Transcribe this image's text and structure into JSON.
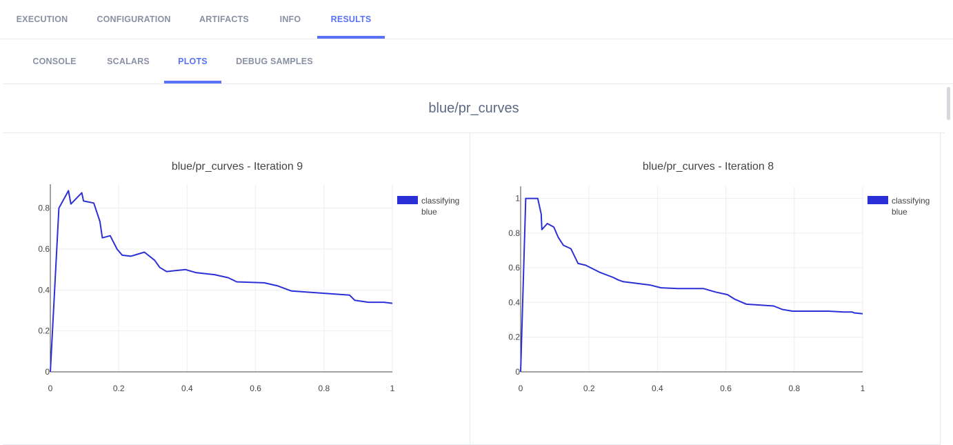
{
  "top_tabs": [
    {
      "label": "EXECUTION",
      "active": false
    },
    {
      "label": "CONFIGURATION",
      "active": false
    },
    {
      "label": "ARTIFACTS",
      "active": false
    },
    {
      "label": "INFO",
      "active": false
    },
    {
      "label": "RESULTS",
      "active": true
    }
  ],
  "sub_tabs": [
    {
      "label": "CONSOLE",
      "active": false
    },
    {
      "label": "SCALARS",
      "active": false
    },
    {
      "label": "PLOTS",
      "active": true
    },
    {
      "label": "DEBUG SAMPLES",
      "active": false
    }
  ],
  "section_title": "blue/pr_curves",
  "colors": {
    "accent": "#5a72f5",
    "series": "#2a2fd6"
  },
  "chart_data": [
    {
      "type": "line",
      "title": "blue/pr_curves - Iteration 9",
      "xlabel": "",
      "ylabel": "",
      "xlim": [
        0,
        1
      ],
      "ylim": [
        0,
        0.9
      ],
      "xticks": [
        0,
        0.2,
        0.4,
        0.6,
        0.8,
        1
      ],
      "xtick_labels": [
        "0",
        "0.2",
        "0.4",
        "0.6",
        "0.8",
        "1"
      ],
      "yticks": [
        0,
        0.2,
        0.4,
        0.6,
        0.8
      ],
      "ytick_labels": [
        "0",
        "0.2",
        "0.4",
        "0.6",
        "0.8"
      ],
      "grid": true,
      "legend_position": "top-right",
      "series": [
        {
          "name": "classifying blue",
          "color": "#2a2fd6",
          "x": [
            0,
            0.025,
            0.053,
            0.06,
            0.092,
            0.097,
            0.127,
            0.145,
            0.152,
            0.175,
            0.195,
            0.21,
            0.235,
            0.275,
            0.305,
            0.32,
            0.34,
            0.395,
            0.425,
            0.48,
            0.52,
            0.545,
            0.625,
            0.665,
            0.705,
            0.875,
            0.89,
            0.93,
            0.945,
            0.975,
            1.0
          ],
          "y": [
            0,
            0.8,
            0.885,
            0.82,
            0.875,
            0.835,
            0.825,
            0.735,
            0.655,
            0.665,
            0.6,
            0.57,
            0.565,
            0.585,
            0.545,
            0.51,
            0.49,
            0.5,
            0.485,
            0.475,
            0.46,
            0.44,
            0.435,
            0.42,
            0.395,
            0.375,
            0.35,
            0.34,
            0.34,
            0.34,
            0.335
          ]
        }
      ]
    },
    {
      "type": "line",
      "title": "blue/pr_curves - Iteration 8",
      "xlabel": "",
      "ylabel": "",
      "xlim": [
        0,
        1
      ],
      "ylim": [
        0,
        1.05
      ],
      "xticks": [
        0,
        0.2,
        0.4,
        0.6,
        0.8,
        1
      ],
      "xtick_labels": [
        "0",
        "0.2",
        "0.4",
        "0.6",
        "0.8",
        "1"
      ],
      "yticks": [
        0,
        0.2,
        0.4,
        0.6,
        0.8,
        1
      ],
      "ytick_labels": [
        "0",
        "0.2",
        "0.4",
        "0.6",
        "0.8",
        "1"
      ],
      "grid": true,
      "legend_position": "top-right",
      "series": [
        {
          "name": "classifying blue",
          "color": "#2a2fd6",
          "x": [
            0,
            0.015,
            0.05,
            0.06,
            0.062,
            0.078,
            0.097,
            0.11,
            0.125,
            0.147,
            0.168,
            0.19,
            0.23,
            0.27,
            0.285,
            0.3,
            0.38,
            0.41,
            0.46,
            0.535,
            0.57,
            0.605,
            0.625,
            0.66,
            0.74,
            0.765,
            0.795,
            0.855,
            0.9,
            0.945,
            0.97,
            0.975,
            1.0
          ],
          "y": [
            0,
            1.0,
            1.0,
            0.91,
            0.82,
            0.855,
            0.835,
            0.775,
            0.73,
            0.71,
            0.625,
            0.615,
            0.575,
            0.545,
            0.53,
            0.52,
            0.5,
            0.485,
            0.48,
            0.48,
            0.46,
            0.445,
            0.42,
            0.39,
            0.38,
            0.36,
            0.35,
            0.35,
            0.35,
            0.345,
            0.345,
            0.34,
            0.335
          ]
        }
      ]
    }
  ]
}
